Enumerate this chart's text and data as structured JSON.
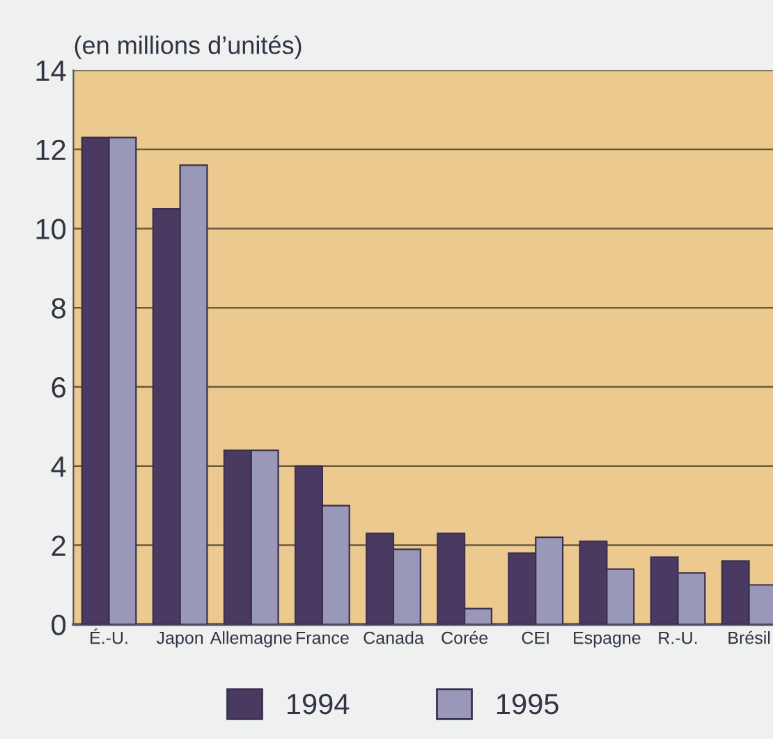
{
  "chart_data": {
    "type": "bar",
    "ylabel": "(en millions d’unités)",
    "categories": [
      "É.-U.",
      "Japon",
      "Allemagne",
      "France",
      "Canada",
      "Corée",
      "CEI",
      "Espagne",
      "R.-U.",
      "Brésil"
    ],
    "series": [
      {
        "name": "1994",
        "color": "#4a3a62",
        "values": [
          12.3,
          10.5,
          4.4,
          4.0,
          2.3,
          2.3,
          1.8,
          2.1,
          1.7,
          1.6
        ]
      },
      {
        "name": "1995",
        "color": "#9a98b8",
        "values": [
          12.3,
          11.6,
          4.4,
          3.0,
          1.9,
          0.4,
          2.2,
          1.4,
          1.3,
          1.0
        ]
      }
    ],
    "ylim": [
      0,
      14
    ],
    "yticks": [
      0,
      2,
      4,
      6,
      8,
      10,
      12,
      14
    ],
    "grid": "y",
    "legend": "bottom"
  }
}
